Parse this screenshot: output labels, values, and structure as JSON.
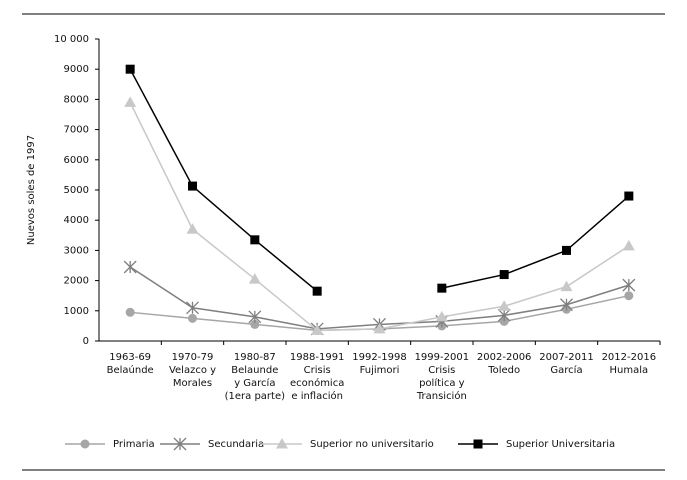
{
  "chart_data": {
    "type": "line",
    "y_label": "Nuevos soles de 1997",
    "categories": [
      "1963-69\nBelaúnde",
      "1970-79\nVelazco y\nMorales",
      "1980-87\nBelaunde\ny García\n(1era parte)",
      "1988-1991\nCrisis\neconómica\ne inflación",
      "1992-1998\nFujimori",
      "1999-2001\nCrisis\npolítica y\nTransición",
      "2002-2006\nToledo",
      "2007-2011\nGarcía",
      "2012-2016\nHumala"
    ],
    "series": [
      {
        "name": "Primaria",
        "color": "#a6a6a6",
        "marker": "circle",
        "values": [
          950,
          750,
          550,
          350,
          400,
          500,
          650,
          1050,
          1500
        ]
      },
      {
        "name": "Secundaria",
        "color": "#7f7f7f",
        "marker": "asterisk",
        "values": [
          2450,
          1100,
          800,
          400,
          550,
          650,
          850,
          1200,
          1850
        ]
      },
      {
        "name": "Superior no universitario",
        "color": "#c8c8c8",
        "marker": "triangle",
        "values": [
          7900,
          3700,
          2050,
          350,
          400,
          800,
          1150,
          1800,
          3150
        ]
      },
      {
        "name": "Superior Universitaria",
        "color": "#000000",
        "marker": "square",
        "values": [
          9000,
          5130,
          3350,
          1650,
          null,
          1750,
          2200,
          3000,
          4800
        ]
      }
    ],
    "ylim": [
      0,
      10000
    ],
    "yticks": [
      0,
      1000,
      2000,
      3000,
      4000,
      5000,
      6000,
      7000,
      8000,
      9000,
      {
        "value": 10000,
        "label": "10 000"
      }
    ],
    "grid": false
  }
}
